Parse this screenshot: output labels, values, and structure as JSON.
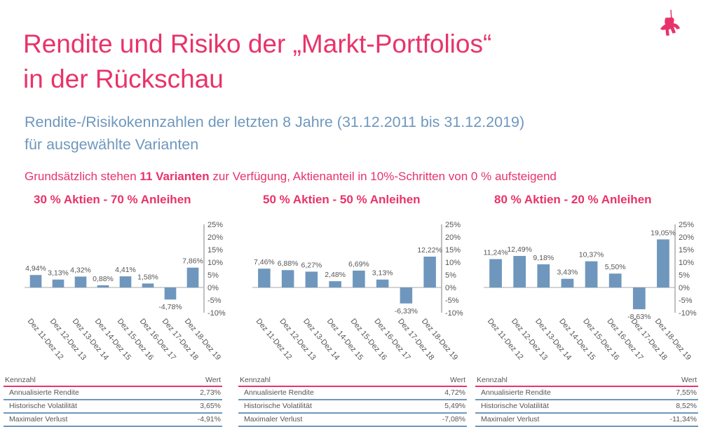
{
  "title_line1": "Rendite und Risiko der „Markt-Portfolios“",
  "title_line2": "in der Rückschau",
  "subtitle_line1": "Rendite-/Risikokennzahlen der letzten 8 Jahre (31.12.2011 bis 31.12.2019)",
  "subtitle_line2": "für ausgewählte Varianten",
  "note": {
    "pre": "Grundsätzlich stehen ",
    "bold": "11 Varianten",
    "post": " zur Verfügung, Aktienanteil in 10%-Schritten von 0 % aufsteigend"
  },
  "colors": {
    "accent": "#e8336a",
    "bar": "#6f97bd",
    "subtitle": "#6f97bd"
  },
  "logo": "knight-on-horse-logo",
  "chart_data": [
    {
      "type": "bar",
      "title": "30 % Aktien - 70 % Anleihen",
      "categories": [
        "Dez 11-Dez 12",
        "Dez 12-Dez 13",
        "Dez 13-Dez 14",
        "Dez 14-Dez 15",
        "Dez 15-Dez 16",
        "Dez 16-Dez 17",
        "Dez 17-Dez 18",
        "Dez 18-Dez 19"
      ],
      "values": [
        4.94,
        3.13,
        4.32,
        0.88,
        4.41,
        1.58,
        -4.78,
        7.86
      ],
      "data_labels": [
        "4,94%",
        "3,13%",
        "4,32%",
        "0,88%",
        "4,41%",
        "1,58%",
        "-4,78%",
        "7,86%"
      ],
      "ylim": [
        -10,
        25
      ],
      "yticks": [
        "25%",
        "20%",
        "15%",
        "10%",
        "5%",
        "0%",
        "-5%",
        "-10%"
      ],
      "grid": false
    },
    {
      "type": "bar",
      "title": "50 % Aktien - 50 % Anleihen",
      "categories": [
        "Dez 11-Dez 12",
        "Dez 12-Dez 13",
        "Dez 13-Dez 14",
        "Dez 14-Dez 15",
        "Dez 15-Dez 16",
        "Dez 16-Dez 17",
        "Dez 17-Dez 18",
        "Dez 18-Dez 19"
      ],
      "values": [
        7.46,
        6.88,
        6.27,
        2.48,
        6.69,
        3.13,
        -6.33,
        12.22
      ],
      "data_labels": [
        "7,46%",
        "6,88%",
        "6,27%",
        "2,48%",
        "6,69%",
        "3,13%",
        "-6,33%",
        "12,22%"
      ],
      "ylim": [
        -10,
        25
      ],
      "yticks": [
        "25%",
        "20%",
        "15%",
        "10%",
        "5%",
        "0%",
        "-5%",
        "-10%"
      ],
      "grid": false
    },
    {
      "type": "bar",
      "title": "80 % Aktien - 20 % Anleihen",
      "categories": [
        "Dez 11-Dez 12",
        "Dez 12-Dez 13",
        "Dez 13-Dez 14",
        "Dez 14-Dez 15",
        "Dez 15-Dez 16",
        "Dez 16-Dez 17",
        "Dez 17-Dez 18",
        "Dez 18-Dez 19"
      ],
      "values": [
        11.24,
        12.49,
        9.18,
        3.43,
        10.37,
        5.5,
        -8.63,
        19.05
      ],
      "data_labels": [
        "11,24%",
        "12,49%",
        "9,18%",
        "3,43%",
        "10,37%",
        "5,50%",
        "-8,63%",
        "19,05%"
      ],
      "ylim": [
        -10,
        25
      ],
      "yticks": [
        "25%",
        "20%",
        "15%",
        "10%",
        "5%",
        "0%",
        "-5%",
        "-10%"
      ],
      "grid": false
    }
  ],
  "tables": [
    {
      "header": [
        "Kennzahl",
        "Wert"
      ],
      "rows": [
        [
          "Annualisierte Rendite",
          "2,73%"
        ],
        [
          "Historische Volatilität",
          "3,65%"
        ],
        [
          "Maximaler Verlust",
          "-4,91%"
        ]
      ]
    },
    {
      "header": [
        "Kennzahl",
        "Wert"
      ],
      "rows": [
        [
          "Annualisierte Rendite",
          "4,72%"
        ],
        [
          "Historische Volatilität",
          "5,49%"
        ],
        [
          "Maximaler Verlust",
          "-7,08%"
        ]
      ]
    },
    {
      "header": [
        "Kennzahl",
        "Wert"
      ],
      "rows": [
        [
          "Annualisierte Rendite",
          "7,55%"
        ],
        [
          "Historische Volatilität",
          "8,52%"
        ],
        [
          "Maximaler Verlust",
          "-11,34%"
        ]
      ]
    }
  ]
}
